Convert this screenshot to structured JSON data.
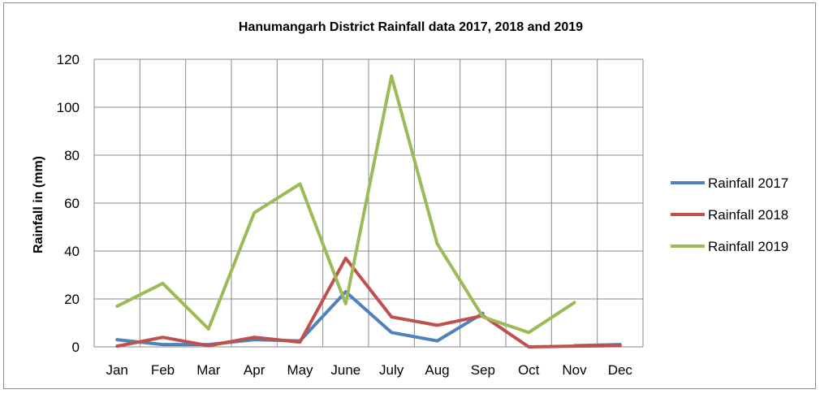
{
  "chart_data": {
    "type": "line",
    "title": "Hanumangarh District Rainfall data 2017, 2018 and 2019",
    "xlabel": "",
    "ylabel": "Rainfall in (mm)",
    "ylim": [
      0,
      120
    ],
    "yticks": [
      0,
      20,
      40,
      60,
      80,
      100,
      120
    ],
    "categories": [
      "Jan",
      "Feb",
      "Mar",
      "Apr",
      "May",
      "June",
      "July",
      "Aug",
      "Sep",
      "Oct",
      "Nov",
      "Dec"
    ],
    "grid": true,
    "legend_position": "right",
    "series": [
      {
        "name": "Rainfall 2017",
        "color": "#4f81bd",
        "values": [
          3,
          1,
          1,
          3,
          2.5,
          23,
          6,
          2.5,
          14,
          null,
          0.5,
          1
        ]
      },
      {
        "name": "Rainfall 2018",
        "color": "#c0504d",
        "values": [
          0.3,
          4,
          0.5,
          4,
          2,
          37,
          12.5,
          9,
          13,
          0,
          0.3,
          0.5
        ]
      },
      {
        "name": "Rainfall 2019",
        "color": "#9bbb59",
        "values": [
          17,
          26.5,
          7.5,
          56,
          68,
          18,
          113,
          43,
          12.5,
          6,
          18.5,
          null
        ]
      }
    ]
  }
}
